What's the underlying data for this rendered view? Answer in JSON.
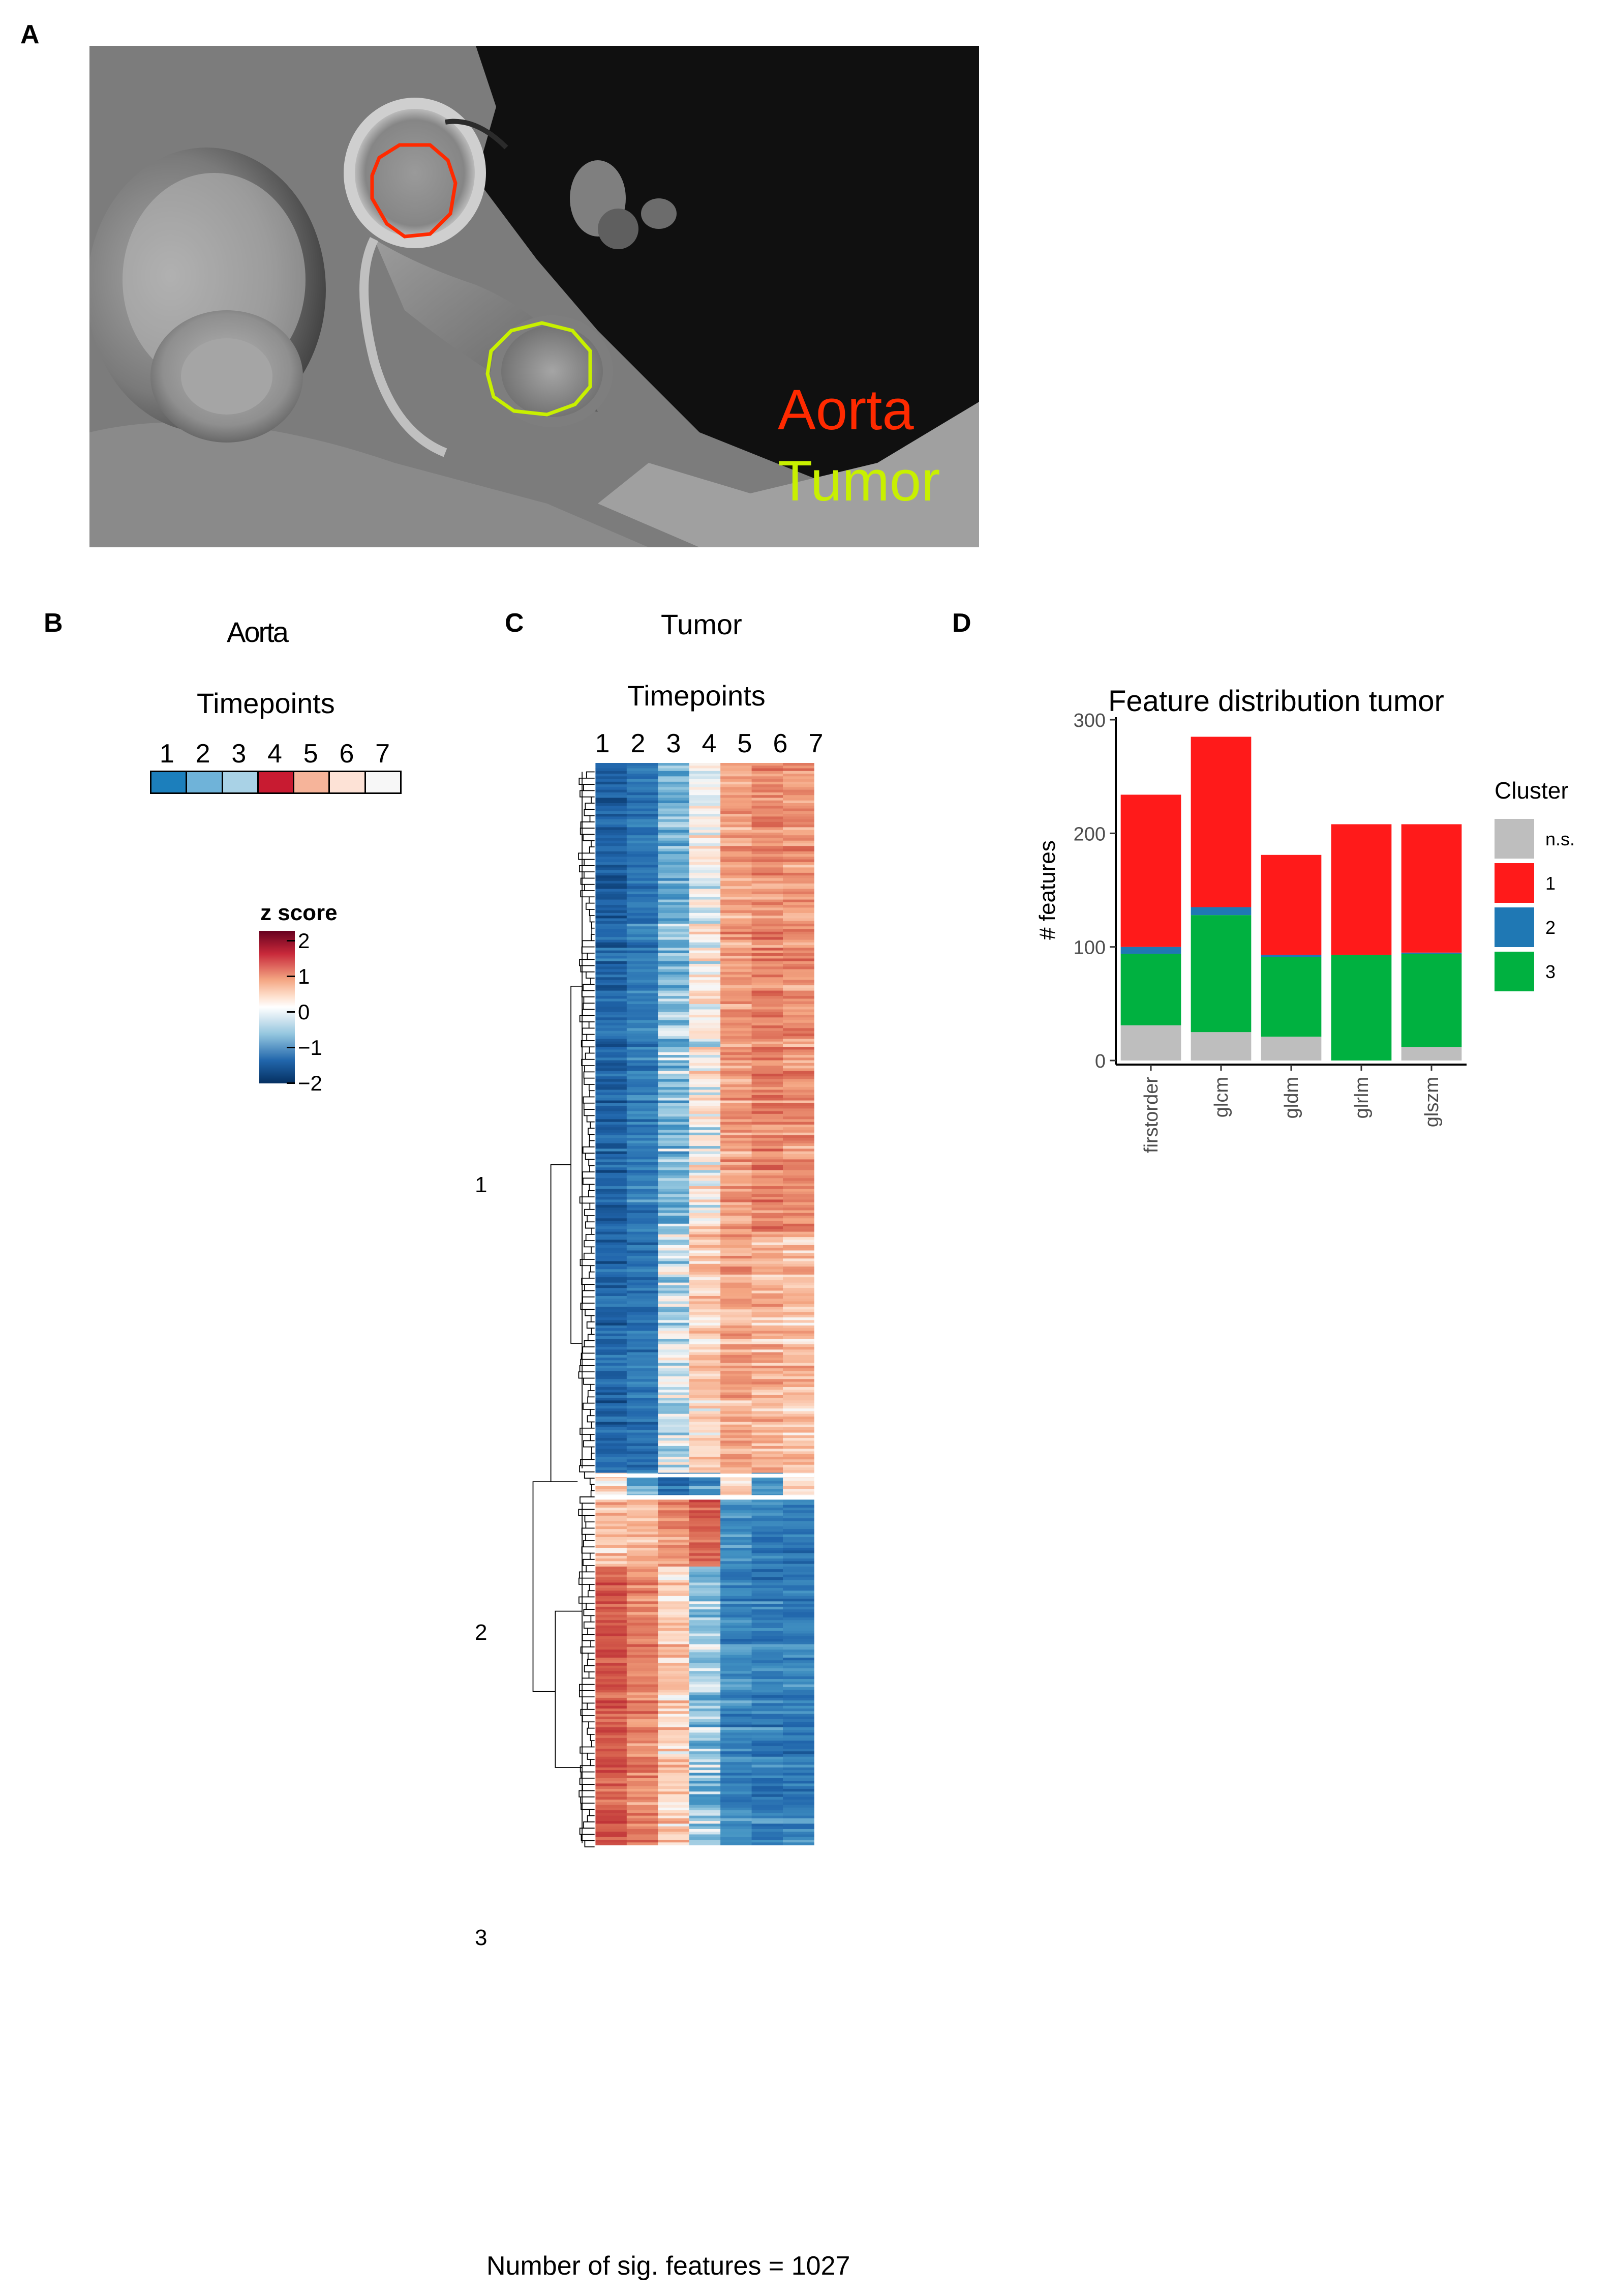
{
  "panels": {
    "a": {
      "letter": "A",
      "aorta_label": "Aorta",
      "tumor_label": "Tumor",
      "colors": {
        "aorta": "#ff2a00",
        "tumor": "#c8f000"
      }
    },
    "b": {
      "letter": "B",
      "title": "Aorta",
      "timepoints_title": "Timepoints",
      "timepoints": [
        "1",
        "2",
        "3",
        "4",
        "5",
        "6",
        "7"
      ],
      "swatch_colors": [
        "#1c7fbc",
        "#6fb3d9",
        "#a9d2e6",
        "#c81b31",
        "#f6b49a",
        "#fde2d6",
        "#f7f7f7"
      ],
      "zscore_title": "z score",
      "zscore_ticks": [
        "2",
        "1",
        "0",
        "−1",
        "−2"
      ]
    },
    "c": {
      "letter": "C",
      "title": "Tumor",
      "timepoints_title": "Timepoints",
      "timepoints": [
        "1",
        "2",
        "3",
        "4",
        "5",
        "6",
        "7"
      ],
      "cluster_labels": [
        "1",
        "2",
        "3"
      ],
      "footer": "Number of sig. features = 1027"
    },
    "d": {
      "letter": "D"
    }
  },
  "chart_data": {
    "type": "bar",
    "stacked": true,
    "title": "Feature distribution tumor",
    "xlabel": "",
    "ylabel": "# features",
    "categories": [
      "firstorder",
      "glcm",
      "gldm",
      "glrlm",
      "glszm"
    ],
    "ylim": [
      0,
      300
    ],
    "yticks": [
      0,
      100,
      200,
      300
    ],
    "legend_title": "Cluster",
    "legend_position": "right",
    "series": [
      {
        "name": "n.s.",
        "color": "#bebebe",
        "values": [
          31,
          25,
          21,
          0,
          12
        ]
      },
      {
        "name": "3",
        "color": "#00b140",
        "values": [
          63,
          103,
          70,
          93,
          82
        ]
      },
      {
        "name": "2",
        "color": "#1f78b4",
        "values": [
          6,
          7,
          2,
          0,
          1
        ]
      },
      {
        "name": "1",
        "color": "#ff1a1a",
        "values": [
          134,
          150,
          88,
          115,
          113
        ]
      }
    ],
    "legend_order": [
      "n.s.",
      "1",
      "2",
      "3"
    ]
  }
}
